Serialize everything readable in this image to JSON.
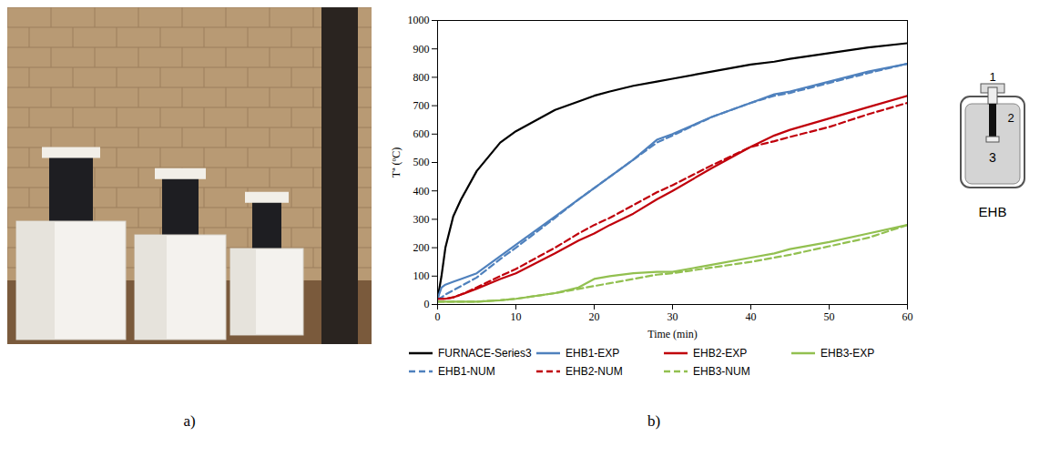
{
  "panel_labels": [
    "a)",
    "b)"
  ],
  "diagram": {
    "title": "EHB",
    "labels": [
      "1",
      "2",
      "3"
    ]
  },
  "chart_data": {
    "type": "line",
    "xlabel": "Time (min)",
    "ylabel": "Tª (ºC)",
    "xlim": [
      0,
      60
    ],
    "xticks": [
      0,
      10,
      20,
      30,
      40,
      50,
      60
    ],
    "ylim": [
      0,
      1000
    ],
    "yticks": [
      0,
      100,
      200,
      300,
      400,
      500,
      600,
      700,
      800,
      900,
      1000
    ],
    "legend": "bottom",
    "grid": false,
    "x": [
      0,
      0.5,
      1,
      2,
      3,
      5,
      8,
      10,
      15,
      18,
      20,
      22,
      25,
      28,
      30,
      35,
      40,
      43,
      45,
      50,
      55,
      60
    ],
    "series": [
      {
        "name": "FURNACE-Series3",
        "color": "#000000",
        "line_style": "solid",
        "values": [
          20,
          100,
          200,
          310,
          370,
          470,
          570,
          610,
          685,
          715,
          735,
          750,
          770,
          785,
          795,
          820,
          845,
          855,
          865,
          885,
          905,
          920
        ]
      },
      {
        "name": "EHB1-EXP",
        "color": "#4f81bd",
        "line_style": "solid",
        "values": [
          20,
          60,
          70,
          80,
          90,
          110,
          170,
          210,
          310,
          370,
          410,
          450,
          510,
          580,
          600,
          660,
          710,
          740,
          750,
          785,
          820,
          848
        ]
      },
      {
        "name": "EHB2-EXP",
        "color": "#c0000b",
        "line_style": "solid",
        "values": [
          20,
          20,
          20,
          25,
          35,
          55,
          90,
          110,
          180,
          225,
          250,
          280,
          320,
          370,
          400,
          480,
          555,
          595,
          615,
          655,
          695,
          735
        ]
      },
      {
        "name": "EHB3-EXP",
        "color": "#92c050",
        "line_style": "solid",
        "values": [
          10,
          10,
          10,
          10,
          10,
          10,
          15,
          20,
          40,
          60,
          90,
          100,
          110,
          115,
          115,
          140,
          165,
          180,
          195,
          220,
          250,
          280
        ]
      },
      {
        "name": "EHB1-NUM",
        "color": "#4f81bd",
        "line_style": "dashed",
        "values": [
          20,
          25,
          35,
          50,
          65,
          95,
          160,
          200,
          305,
          370,
          410,
          450,
          510,
          570,
          595,
          660,
          710,
          735,
          745,
          780,
          815,
          848
        ]
      },
      {
        "name": "EHB2-NUM",
        "color": "#c0000b",
        "line_style": "dashed",
        "values": [
          20,
          20,
          20,
          25,
          35,
          60,
          100,
          125,
          200,
          250,
          280,
          305,
          350,
          395,
          420,
          490,
          555,
          575,
          590,
          625,
          670,
          710
        ]
      },
      {
        "name": "EHB3-NUM",
        "color": "#92c050",
        "line_style": "dashed",
        "values": [
          10,
          10,
          10,
          10,
          10,
          10,
          15,
          20,
          40,
          55,
          65,
          75,
          90,
          105,
          110,
          130,
          150,
          165,
          175,
          205,
          235,
          280
        ]
      }
    ]
  }
}
